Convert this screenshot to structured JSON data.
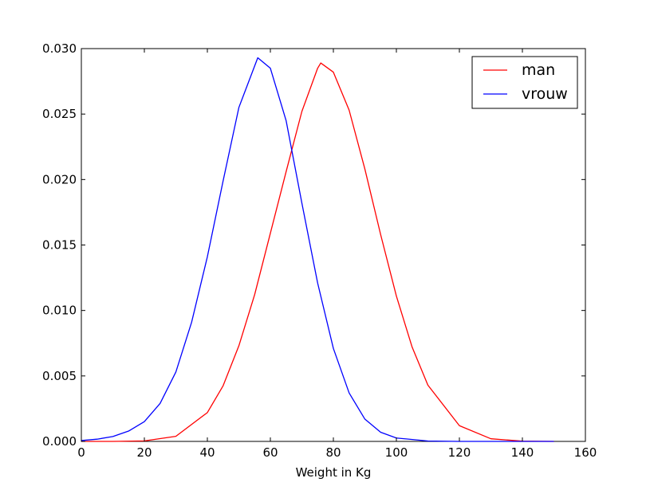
{
  "chart_data": {
    "type": "line",
    "title": "",
    "xlabel": "Weight in Kg",
    "ylabel": "",
    "xlim": [
      0,
      160
    ],
    "ylim": [
      0,
      0.03
    ],
    "xticks": [
      "0",
      "20",
      "40",
      "60",
      "80",
      "100",
      "120",
      "140",
      "160"
    ],
    "yticks": [
      "0.000",
      "0.005",
      "0.010",
      "0.015",
      "0.020",
      "0.025",
      "0.030"
    ],
    "grid": false,
    "legend": "top-right",
    "series": [
      {
        "name": "man",
        "color": "#ff0000",
        "x": [
          0,
          10,
          20,
          30,
          40,
          45,
          50,
          55,
          60,
          65,
          70,
          75,
          76,
          80,
          85,
          90,
          95,
          100,
          105,
          110,
          120,
          130,
          140,
          150
        ],
        "y": [
          0.0,
          0.0,
          4e-05,
          0.00039,
          0.0022,
          0.00425,
          0.0073,
          0.0112,
          0.0159,
          0.0206,
          0.0252,
          0.0285,
          0.0289,
          0.0282,
          0.0253,
          0.0208,
          0.0158,
          0.0111,
          0.0072,
          0.0043,
          0.0012,
          0.0002,
          2e-05,
          0.0
        ]
      },
      {
        "name": "vrouw",
        "color": "#0000ff",
        "x": [
          0,
          5,
          10,
          15,
          20,
          25,
          30,
          35,
          40,
          45,
          50,
          56,
          60,
          65,
          70,
          75,
          80,
          85,
          90,
          95,
          100,
          110,
          120,
          130,
          140,
          150
        ],
        "y": [
          7e-05,
          0.00017,
          0.00037,
          0.00079,
          0.00151,
          0.0029,
          0.0053,
          0.0091,
          0.0141,
          0.0199,
          0.0255,
          0.0293,
          0.0285,
          0.0245,
          0.0182,
          0.0121,
          0.0071,
          0.0037,
          0.0017,
          0.0007,
          0.00026,
          3e-05,
          0.0,
          0.0,
          0.0,
          0.0
        ]
      }
    ]
  }
}
